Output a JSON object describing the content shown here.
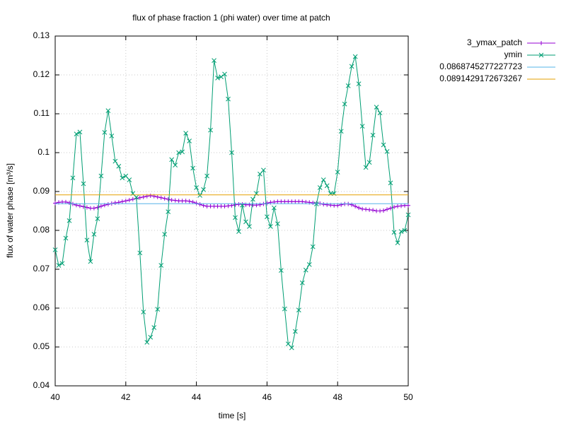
{
  "chart_data": {
    "type": "line",
    "title": "flux of phase fraction 1 (phi water) over time at patch",
    "x_label": "time [s]",
    "y_label": "flux of water phase [m³/s]",
    "x": [
      40.0,
      40.1,
      40.2,
      40.3,
      40.4,
      40.5,
      40.6,
      40.7,
      40.8,
      40.9,
      41.0,
      41.1,
      41.2,
      41.3,
      41.4,
      41.5,
      41.6,
      41.7,
      41.8,
      41.9,
      42.0,
      42.1,
      42.2,
      42.3,
      42.4,
      42.5,
      42.6,
      42.7,
      42.8,
      42.9,
      43.0,
      43.1,
      43.2,
      43.3,
      43.4,
      43.5,
      43.6,
      43.7,
      43.8,
      43.9,
      44.0,
      44.1,
      44.2,
      44.3,
      44.4,
      44.5,
      44.6,
      44.7,
      44.8,
      44.9,
      45.0,
      45.1,
      45.2,
      45.3,
      45.4,
      45.5,
      45.6,
      45.7,
      45.8,
      45.9,
      46.0,
      46.1,
      46.2,
      46.3,
      46.4,
      46.5,
      46.6,
      46.7,
      46.8,
      46.9,
      47.0,
      47.1,
      47.2,
      47.3,
      47.4,
      47.5,
      47.6,
      47.7,
      47.8,
      47.9,
      48.0,
      48.1,
      48.2,
      48.3,
      48.4,
      48.5,
      48.6,
      48.7,
      48.8,
      48.9,
      49.0,
      49.1,
      49.2,
      49.3,
      49.4,
      49.5,
      49.6,
      49.7,
      49.8,
      49.9,
      50.0
    ],
    "series": [
      {
        "name": "3_ymax_patch",
        "color": "#9400d3",
        "marker": "plus",
        "values": [
          0.087,
          0.0872,
          0.0873,
          0.0873,
          0.0871,
          0.0868,
          0.0865,
          0.0863,
          0.0861,
          0.0859,
          0.0857,
          0.0857,
          0.0859,
          0.0862,
          0.0865,
          0.0867,
          0.0869,
          0.0871,
          0.0872,
          0.0874,
          0.0876,
          0.0878,
          0.088,
          0.0882,
          0.0884,
          0.0886,
          0.0888,
          0.0889,
          0.0888,
          0.0886,
          0.0884,
          0.0882,
          0.088,
          0.0878,
          0.0877,
          0.0876,
          0.0876,
          0.0876,
          0.0875,
          0.0873,
          0.087,
          0.0867,
          0.0864,
          0.0862,
          0.0862,
          0.0862,
          0.0862,
          0.0862,
          0.0862,
          0.0863,
          0.0864,
          0.0866,
          0.0867,
          0.0867,
          0.0866,
          0.0866,
          0.0865,
          0.0865,
          0.0866,
          0.0868,
          0.087,
          0.0872,
          0.0873,
          0.0874,
          0.0874,
          0.0874,
          0.0874,
          0.0874,
          0.0874,
          0.0874,
          0.0874,
          0.0873,
          0.0872,
          0.0871,
          0.087,
          0.0869,
          0.0867,
          0.0866,
          0.0865,
          0.0864,
          0.0864,
          0.0866,
          0.0868,
          0.0868,
          0.0866,
          0.0862,
          0.0858,
          0.0855,
          0.0854,
          0.0853,
          0.0852,
          0.085,
          0.085,
          0.0851,
          0.0854,
          0.0857,
          0.086,
          0.0862,
          0.0863,
          0.0864,
          0.0864
        ]
      },
      {
        "name": "ymin",
        "color": "#009e73",
        "marker": "cross",
        "values": [
          0.075,
          0.071,
          0.0715,
          0.078,
          0.0825,
          0.0935,
          0.1048,
          0.1053,
          0.092,
          0.0775,
          0.072,
          0.079,
          0.083,
          0.094,
          0.1052,
          0.1108,
          0.1043,
          0.0978,
          0.0965,
          0.0935,
          0.094,
          0.093,
          0.0895,
          0.0885,
          0.0742,
          0.059,
          0.0512,
          0.0525,
          0.055,
          0.0597,
          0.071,
          0.079,
          0.0848,
          0.0982,
          0.0968,
          0.1,
          0.1002,
          0.105,
          0.103,
          0.096,
          0.091,
          0.089,
          0.0905,
          0.094,
          0.1058,
          0.1237,
          0.1192,
          0.1195,
          0.1202,
          0.1138,
          0.1,
          0.0833,
          0.0797,
          0.0865,
          0.0822,
          0.081,
          0.088,
          0.0895,
          0.0945,
          0.0955,
          0.0835,
          0.081,
          0.0858,
          0.0817,
          0.0697,
          0.0598,
          0.0508,
          0.0498,
          0.054,
          0.0595,
          0.0665,
          0.0698,
          0.0712,
          0.0758,
          0.0868,
          0.091,
          0.093,
          0.0915,
          0.0895,
          0.0895,
          0.095,
          0.1055,
          0.1125,
          0.1172,
          0.1222,
          0.1247,
          0.1177,
          0.1068,
          0.0962,
          0.0975,
          0.1045,
          0.1117,
          0.1102,
          0.102,
          0.1003,
          0.0922,
          0.0795,
          0.0768,
          0.0797,
          0.08,
          0.084
        ]
      },
      {
        "name": "0.0868745277227723",
        "color": "#56b4e9",
        "value": 0.0868745277227723
      },
      {
        "name": "0.0891429172673267",
        "color": "#e69f00",
        "value": 0.0891429172673267
      }
    ],
    "xlim": [
      40,
      50
    ],
    "xticks": [
      40,
      42,
      44,
      46,
      48,
      50
    ],
    "ylim": [
      0.04,
      0.13
    ],
    "yticks": [
      0.04,
      0.05,
      0.06,
      0.07,
      0.08,
      0.09,
      0.1,
      0.11,
      0.12,
      0.13
    ],
    "grid": true,
    "legend": "outside-right"
  }
}
